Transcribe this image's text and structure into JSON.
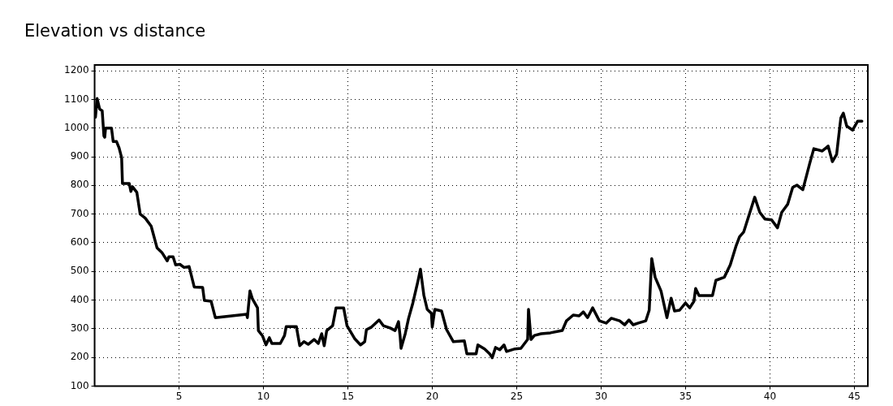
{
  "chart_data": {
    "type": "line",
    "title": "Elevation vs distance",
    "x": [
      0.05,
      0.15,
      0.3,
      0.45,
      0.55,
      0.6,
      0.65,
      1.0,
      1.1,
      1.3,
      1.45,
      1.6,
      1.65,
      2.05,
      2.15,
      2.25,
      2.5,
      2.7,
      3.0,
      3.35,
      3.7,
      4.0,
      4.3,
      4.4,
      4.65,
      4.8,
      5.05,
      5.3,
      5.6,
      5.9,
      6.4,
      6.5,
      6.9,
      7.15,
      9.0,
      9.05,
      9.2,
      9.35,
      9.65,
      9.7,
      9.95,
      10.15,
      10.35,
      10.5,
      11.0,
      11.25,
      11.35,
      11.95,
      12.15,
      12.4,
      12.65,
      13.0,
      13.25,
      13.45,
      13.6,
      13.75,
      14.1,
      14.3,
      14.75,
      14.95,
      15.4,
      15.75,
      16.0,
      16.1,
      16.4,
      16.85,
      17.1,
      17.5,
      17.8,
      18.0,
      18.1,
      18.15,
      18.4,
      18.6,
      18.85,
      19.15,
      19.3,
      19.5,
      19.7,
      19.95,
      20.0,
      20.15,
      20.55,
      20.85,
      21.25,
      21.9,
      22.05,
      22.6,
      22.7,
      23.1,
      23.4,
      23.55,
      23.75,
      24.0,
      24.25,
      24.4,
      24.9,
      25.25,
      25.65,
      25.7,
      25.85,
      26.05,
      26.45,
      27.0,
      27.7,
      27.95,
      28.35,
      28.7,
      28.95,
      29.2,
      29.5,
      29.9,
      30.3,
      30.6,
      31.1,
      31.4,
      31.65,
      31.9,
      32.2,
      32.65,
      32.85,
      33.0,
      33.2,
      33.55,
      33.9,
      34.15,
      34.35,
      34.65,
      35.0,
      35.25,
      35.5,
      35.6,
      35.8,
      36.6,
      36.8,
      37.3,
      37.65,
      38.0,
      38.2,
      38.45,
      39.1,
      39.4,
      39.7,
      40.1,
      40.45,
      40.7,
      41.05,
      41.35,
      41.6,
      41.95,
      42.35,
      42.6,
      43.1,
      43.45,
      43.7,
      43.95,
      44.2,
      44.35,
      44.55,
      44.9,
      45.2,
      45.45
    ],
    "series": [
      {
        "color": "#000000",
        "values": [
          1038,
          1103,
          1066,
          1060,
          973,
          968,
          1000,
          1000,
          953,
          953,
          931,
          897,
          807,
          807,
          779,
          795,
          776,
          700,
          686,
          658,
          582,
          565,
          537,
          551,
          551,
          523,
          525,
          514,
          517,
          446,
          444,
          399,
          396,
          339,
          351,
          339,
          432,
          404,
          373,
          294,
          275,
          244,
          269,
          249,
          249,
          277,
          308,
          308,
          241,
          255,
          246,
          263,
          249,
          283,
          241,
          294,
          311,
          373,
          373,
          311,
          266,
          244,
          255,
          297,
          306,
          331,
          311,
          303,
          294,
          325,
          272,
          232,
          283,
          337,
          390,
          466,
          508,
          418,
          368,
          354,
          306,
          368,
          362,
          297,
          255,
          258,
          213,
          213,
          244,
          230,
          213,
          199,
          235,
          227,
          244,
          221,
          230,
          232,
          263,
          368,
          263,
          277,
          283,
          286,
          294,
          328,
          348,
          345,
          359,
          339,
          373,
          328,
          320,
          337,
          328,
          314,
          331,
          314,
          320,
          328,
          365,
          545,
          480,
          432,
          339,
          407,
          362,
          365,
          390,
          373,
          396,
          441,
          416,
          416,
          469,
          480,
          523,
          590,
          621,
          638,
          759,
          706,
          683,
          680,
          652,
          706,
          734,
          793,
          801,
          785,
          875,
          928,
          920,
          937,
          883,
          908,
          1035,
          1052,
          1007,
          993,
          1024,
          1024
        ]
      }
    ],
    "xlim": [
      0,
      45.8
    ],
    "ylim": [
      100,
      1220
    ],
    "xticks": [
      5,
      10,
      15,
      20,
      25,
      30,
      35,
      40,
      45
    ],
    "yticks": [
      100,
      200,
      300,
      400,
      500,
      600,
      700,
      800,
      900,
      1000,
      1100,
      1200
    ],
    "grid": true,
    "legend": false,
    "marker": "none",
    "line_style": "solid"
  }
}
